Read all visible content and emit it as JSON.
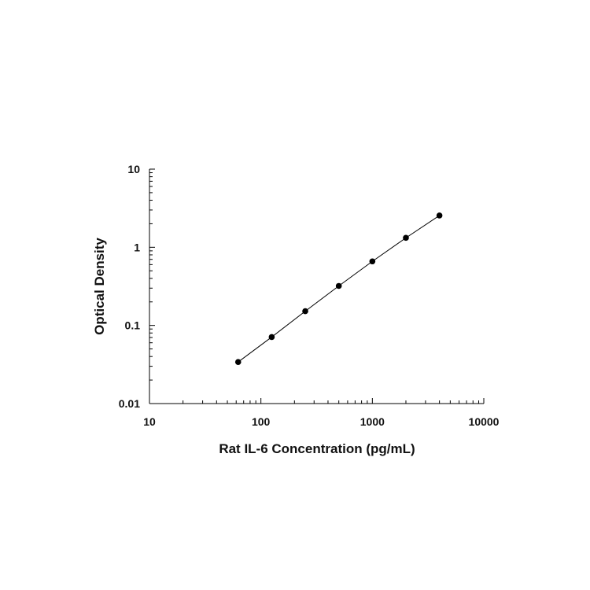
{
  "chart_data": {
    "type": "scatter",
    "title": "",
    "xlabel": "Rat IL-6 Concentration (pg/mL)",
    "ylabel": "Optical Density",
    "x_scale": "log",
    "y_scale": "log",
    "xlim": [
      10,
      10000
    ],
    "ylim": [
      0.01,
      10
    ],
    "x_ticks": [
      10,
      100,
      1000,
      10000
    ],
    "x_tick_labels": [
      "10",
      "100",
      "1000",
      "10000"
    ],
    "y_ticks": [
      0.01,
      0.1,
      1,
      10
    ],
    "y_tick_labels": [
      "0.01",
      "0.1",
      "1",
      "10"
    ],
    "grid": false,
    "legend": "none",
    "series": [
      {
        "x": [
          62.5,
          125,
          250,
          500,
          1000,
          2000,
          4000
        ],
        "y": [
          0.034,
          0.071,
          0.152,
          0.32,
          0.66,
          1.32,
          2.55
        ],
        "fit_line": true
      }
    ],
    "colors": {
      "marker": "#000000",
      "line": "#000000",
      "axis": "#000000"
    }
  }
}
